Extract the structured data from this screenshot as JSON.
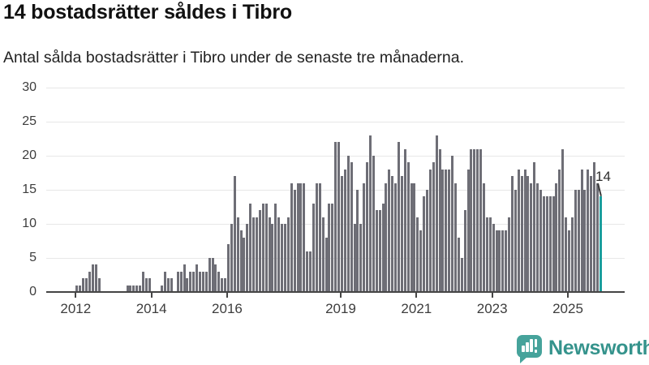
{
  "header": {
    "title": "14 bostadsrätter såldes i Tibro",
    "subtitle": "Antal sålda bostadsrätter i Tibro under de senaste tre månaderna."
  },
  "chart_data": {
    "type": "bar",
    "title": "14 bostadsrätter såldes i Tibro",
    "subtitle": "Antal sålda bostadsrätter i Tibro under de senaste tre månaderna.",
    "x_unit": "month",
    "start_month": "2011-04",
    "end_month": "2025-11",
    "ylim": [
      0,
      30
    ],
    "y_ticks": [
      0,
      5,
      10,
      15,
      20,
      25,
      30
    ],
    "x_tick_years": [
      2012,
      2014,
      2016,
      2019,
      2021,
      2023,
      2025
    ],
    "grid": true,
    "legend": "none",
    "bar_color": "#6e6e76",
    "highlight_color": "#1a9e9d",
    "axis_color": "#454545",
    "highlight": {
      "index": 175,
      "value": 14,
      "label": "14"
    },
    "values": [
      0,
      0,
      0,
      0,
      0,
      0,
      0,
      0,
      0,
      1,
      1,
      2,
      2,
      3,
      4,
      4,
      2,
      0,
      0,
      0,
      0,
      0,
      0,
      0,
      0,
      1,
      1,
      1,
      1,
      1,
      3,
      2,
      2,
      0,
      0,
      0,
      1,
      3,
      2,
      2,
      0,
      3,
      3,
      4,
      2,
      3,
      3,
      4,
      3,
      3,
      3,
      5,
      5,
      4,
      3,
      2,
      2,
      7,
      10,
      17,
      11,
      9,
      8,
      10,
      13,
      11,
      11,
      12,
      13,
      13,
      11,
      10,
      13,
      11,
      10,
      10,
      11,
      16,
      15,
      16,
      16,
      16,
      6,
      6,
      13,
      16,
      16,
      11,
      8,
      13,
      13,
      22,
      22,
      17,
      18,
      20,
      19,
      10,
      15,
      10,
      16,
      19,
      23,
      20,
      12,
      12,
      13,
      16,
      18,
      17,
      16,
      22,
      17,
      21,
      19,
      16,
      16,
      11,
      9,
      14,
      15,
      18,
      19,
      23,
      21,
      18,
      18,
      18,
      20,
      16,
      8,
      5,
      12,
      18,
      21,
      21,
      21,
      21,
      16,
      11,
      11,
      10,
      9,
      9,
      9,
      9,
      11,
      17,
      15,
      18,
      17,
      18,
      17,
      16,
      19,
      16,
      15,
      14,
      14,
      14,
      14,
      16,
      18,
      21,
      11,
      9,
      11,
      15,
      15,
      18,
      15,
      18,
      17,
      19,
      16,
      14
    ]
  },
  "footer": {
    "brand": "Newsworthy",
    "brand_color": "#35938c",
    "logo_icon_color": "#46a39b",
    "logo_icon": "bar-chart-speech-bubble-icon"
  }
}
